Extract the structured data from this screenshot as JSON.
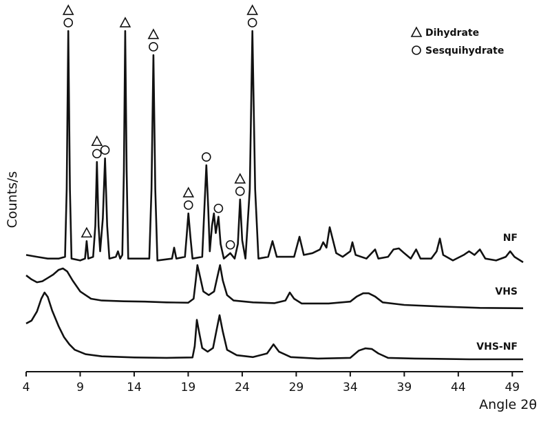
{
  "chart_data": {
    "type": "line",
    "xlabel": "Angle 2θ",
    "ylabel": "Counts/s",
    "xlim": [
      4,
      50
    ],
    "xticks": [
      4,
      9,
      14,
      19,
      24,
      29,
      34,
      39,
      44,
      49
    ],
    "ylim": [
      0,
      100
    ],
    "color": "#111111",
    "legend": {
      "position": "upper right",
      "entries": [
        {
          "name": "Dihydrate",
          "symbol": "triangle"
        },
        {
          "name": "Sesquihydrate",
          "symbol": "circle"
        }
      ]
    },
    "annotations": [
      {
        "x": 7.9,
        "symbols": [
          "circle",
          "triangle"
        ]
      },
      {
        "x": 9.6,
        "symbols": [
          "triangle"
        ]
      },
      {
        "x": 10.55,
        "symbols": [
          "circle",
          "triangle"
        ]
      },
      {
        "x": 11.3,
        "symbols": [
          "circle"
        ]
      },
      {
        "x": 13.17,
        "symbols": [
          "triangle"
        ]
      },
      {
        "x": 15.78,
        "symbols": [
          "circle",
          "triangle"
        ]
      },
      {
        "x": 19.02,
        "symbols": [
          "circle",
          "triangle"
        ]
      },
      {
        "x": 20.68,
        "symbols": [
          "circle"
        ]
      },
      {
        "x": 21.8,
        "symbols": [
          "circle"
        ]
      },
      {
        "x": 22.9,
        "symbols": [
          "circle"
        ]
      },
      {
        "x": 23.8,
        "symbols": [
          "circle",
          "triangle"
        ]
      },
      {
        "x": 24.94,
        "symbols": [
          "circle",
          "triangle"
        ]
      }
    ],
    "series": [
      {
        "name": "NF",
        "x": [
          4,
          5,
          6,
          7,
          7.6,
          7.75,
          7.9,
          8.05,
          8.2,
          9,
          9.45,
          9.6,
          9.75,
          10.2,
          10.4,
          10.55,
          10.7,
          10.85,
          11.1,
          11.3,
          11.5,
          11.7,
          12.3,
          12.5,
          12.7,
          12.9,
          13.05,
          13.17,
          13.3,
          13.45,
          15.4,
          15.6,
          15.78,
          15.95,
          16.15,
          17.5,
          17.7,
          17.9,
          18.7,
          18.85,
          19.02,
          19.2,
          19.4,
          20.3,
          20.5,
          20.68,
          20.85,
          21.0,
          21.2,
          21.38,
          21.55,
          21.8,
          22.0,
          22.3,
          22.9,
          23.3,
          23.6,
          23.8,
          24.0,
          24.3,
          24.7,
          24.94,
          25.2,
          25.5,
          26.4,
          26.8,
          27.2,
          28.8,
          29.3,
          29.7,
          30.5,
          31.2,
          31.5,
          31.8,
          32.1,
          32.4,
          32.7,
          33.3,
          34.0,
          34.2,
          34.5,
          35.5,
          36.3,
          36.6,
          37.5,
          38.0,
          38.5,
          39.0,
          39.6,
          40.1,
          40.5,
          41.5,
          42.0,
          42.3,
          42.6,
          43.5,
          44.5,
          45.0,
          45.5,
          46.0,
          46.5,
          47.5,
          48.4,
          48.8,
          49.2,
          50
        ],
        "values": [
          32,
          31.5,
          31,
          31,
          31.5,
          50,
          93.4,
          50,
          31,
          30.5,
          31,
          35.8,
          31,
          31.5,
          40,
          57.5,
          40,
          33,
          42,
          58.5,
          40,
          31,
          31.5,
          33,
          31,
          32,
          55,
          93.4,
          55,
          31,
          31,
          50,
          86.8,
          50,
          30.5,
          31,
          34,
          31,
          31.5,
          37,
          43.4,
          37,
          31,
          31.5,
          45,
          56.6,
          45,
          33,
          40,
          43.4,
          38,
          42.5,
          35,
          31,
          32.5,
          31,
          35,
          47.2,
          36,
          31,
          50,
          93.4,
          50,
          31,
          31.5,
          35.8,
          31.5,
          31.5,
          37,
          32,
          32.5,
          33.5,
          35.5,
          34,
          39.6,
          36,
          32.5,
          31.5,
          33,
          35.5,
          32,
          31,
          33.5,
          31,
          31.5,
          33.5,
          33.8,
          32.5,
          31,
          33.5,
          31,
          31,
          33,
          36.5,
          32,
          30.5,
          32,
          33,
          32,
          33.5,
          31,
          30.5,
          31.5,
          33,
          31.5,
          30
        ]
      },
      {
        "name": "VHS",
        "x": [
          4,
          4.5,
          5,
          5.5,
          6,
          6.5,
          7,
          7.4,
          7.8,
          8.3,
          9,
          10,
          11,
          13,
          15,
          17,
          19,
          19.5,
          19.7,
          19.85,
          20.1,
          20.4,
          20.9,
          21.4,
          21.7,
          21.95,
          22.2,
          22.6,
          23.2,
          25,
          27,
          28,
          28.4,
          28.8,
          29.5,
          32,
          34,
          34.6,
          35.2,
          35.7,
          36.3,
          37,
          39,
          42,
          46,
          50
        ],
        "values": [
          26.4,
          25.3,
          24.5,
          24.8,
          25.7,
          26.6,
          27.9,
          28.3,
          27.5,
          25,
          22,
          20,
          19.5,
          19.3,
          19.2,
          19,
          18.9,
          20,
          25,
          29.2,
          26,
          22,
          21,
          22,
          26,
          29.2,
          25,
          21,
          19.5,
          19,
          18.8,
          19.5,
          21.7,
          20,
          18.7,
          18.7,
          19.2,
          20.6,
          21.5,
          21.5,
          20.6,
          19,
          18.3,
          17.9,
          17.5,
          17.4
        ]
      },
      {
        "name": "VHS-NF",
        "x": [
          4,
          4.5,
          5,
          5.4,
          5.7,
          6,
          6.4,
          7,
          7.5,
          8,
          8.5,
          9.5,
          11,
          14,
          17,
          19.4,
          19.6,
          19.8,
          20.0,
          20.3,
          20.8,
          21.3,
          21.6,
          21.9,
          22.2,
          22.6,
          23.5,
          25,
          26.3,
          26.9,
          27.4,
          28.5,
          31,
          34,
          34.8,
          35.4,
          36,
          36.6,
          37.5,
          40,
          45,
          50
        ],
        "values": [
          13.2,
          14,
          16.5,
          20,
          21.7,
          20.5,
          16.8,
          12.5,
          9.5,
          7.5,
          6,
          4.8,
          4.2,
          3.9,
          3.8,
          3.9,
          7,
          14.2,
          11,
          6.5,
          5.5,
          6.5,
          11,
          15.5,
          11,
          6,
          4.5,
          4,
          5,
          7.5,
          5.5,
          4,
          3.6,
          3.8,
          5.8,
          6.4,
          6.2,
          5,
          3.8,
          3.6,
          3.4,
          3.4
        ]
      }
    ]
  }
}
